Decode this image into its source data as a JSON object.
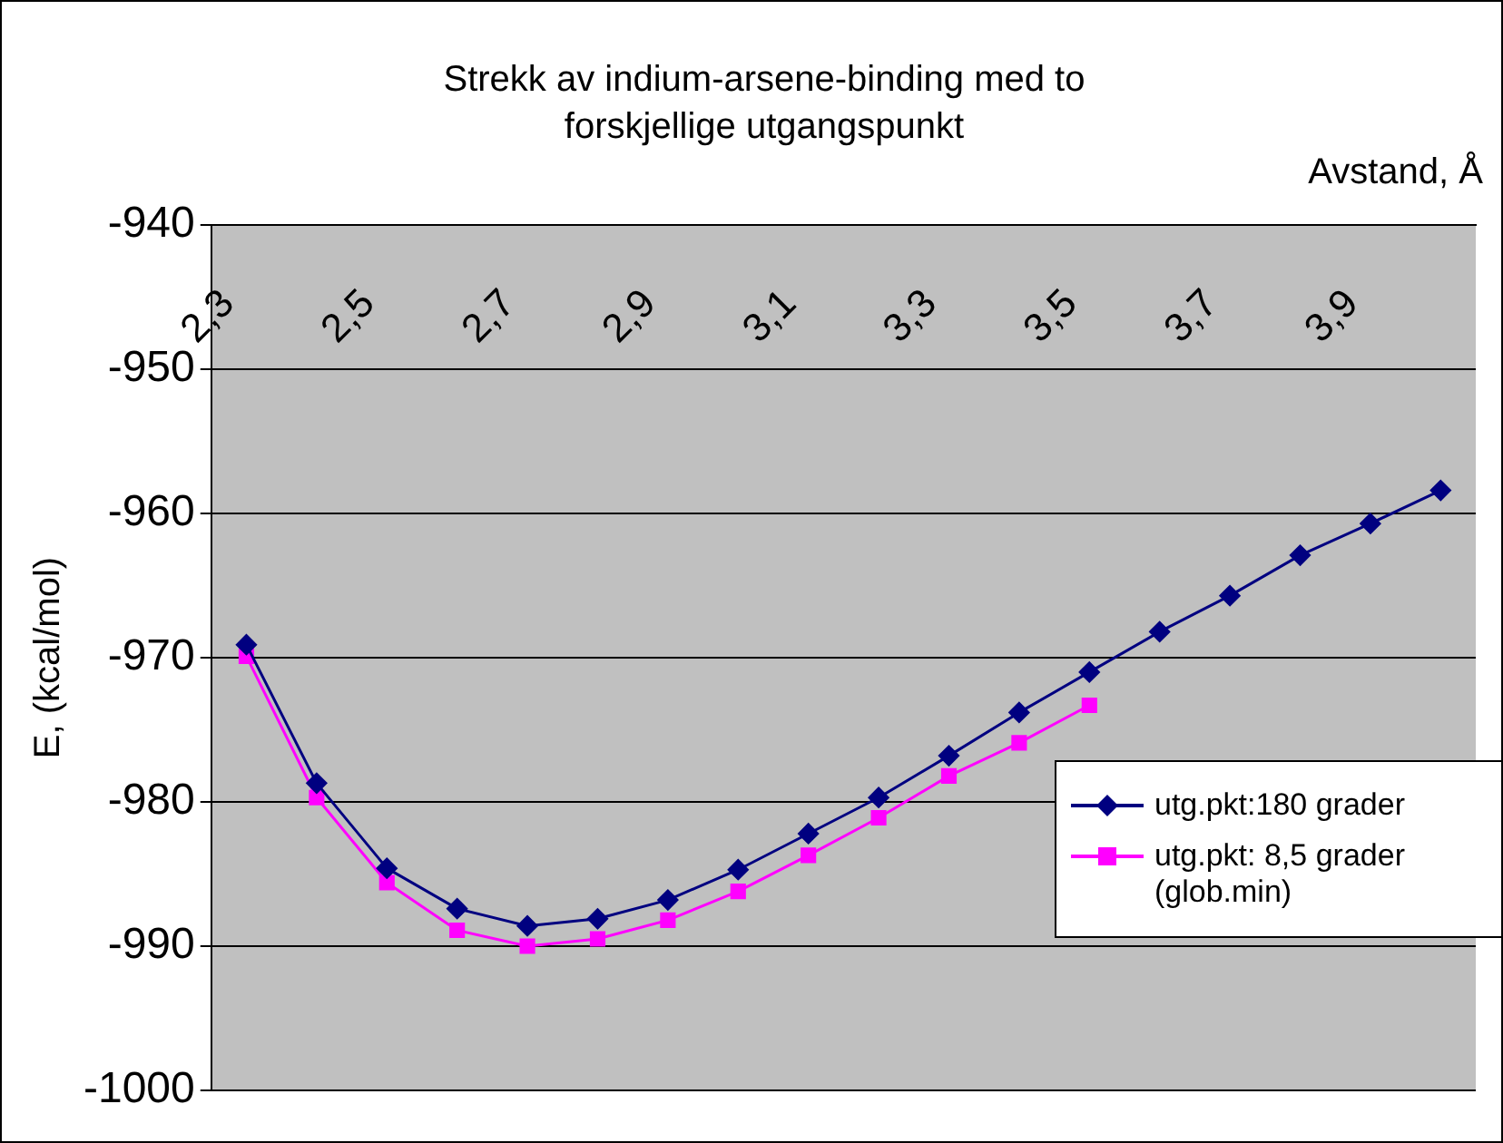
{
  "chart_data": {
    "type": "line",
    "title": "Strekk av indium-arsene-binding med to forskjellige utgangspunkt",
    "xlabel": "Avstand, Å",
    "ylabel": "E, (kcal/mol)",
    "categories": [
      "2,3",
      null,
      "2,5",
      null,
      "2,7",
      null,
      "2,9",
      null,
      "3,1",
      null,
      "3,3",
      null,
      "3,5",
      null,
      "3,7",
      null,
      "3,9",
      null
    ],
    "series": [
      {
        "name": "utg.pkt:180 grader",
        "color": "#000080",
        "marker": "diamond",
        "values": [
          -969.1,
          -978.7,
          -984.6,
          -987.4,
          -988.6,
          -988.1,
          -986.8,
          -984.7,
          -982.2,
          -979.7,
          -976.8,
          -973.8,
          -971.0,
          -968.2,
          -965.7,
          -962.9,
          -960.7,
          -958.4
        ]
      },
      {
        "name": "utg.pkt: 8,5 grader (glob.min)",
        "color": "#ff00ff",
        "marker": "square",
        "values": [
          -969.9,
          -979.7,
          -985.6,
          -988.9,
          -990.0,
          -989.5,
          -988.2,
          -986.2,
          -983.7,
          -981.1,
          -978.2,
          -975.9,
          -973.3,
          null,
          null,
          null,
          null,
          null
        ]
      }
    ],
    "ylim": [
      -1000,
      -940
    ],
    "yticks": [
      -1000,
      -990,
      -980,
      -970,
      -960,
      -950,
      -940
    ],
    "grid": "y",
    "legend": "right",
    "line_style": "solid"
  }
}
